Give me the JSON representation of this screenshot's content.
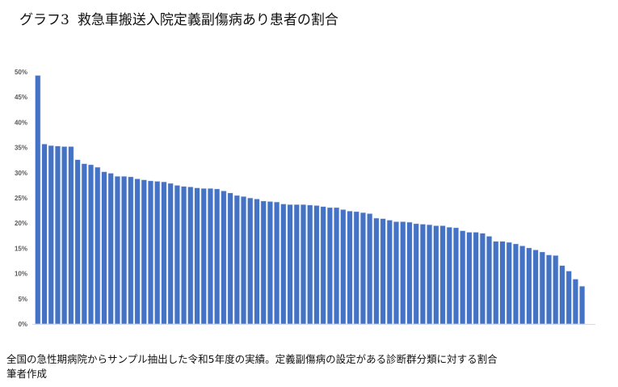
{
  "chart_data": {
    "type": "bar",
    "title_prefix": "グラフ3",
    "title": "救急車搬送入院定義副傷病あり患者の割合",
    "xlabel": "",
    "ylabel": "",
    "ylim": [
      0,
      50
    ],
    "yticks": [
      "0%",
      "5%",
      "10%",
      "15%",
      "20%",
      "25%",
      "30%",
      "35%",
      "40%",
      "45%",
      "50%"
    ],
    "grid": false,
    "color": "#4472C4",
    "values": [
      49.3,
      35.7,
      35.4,
      35.3,
      35.2,
      35.2,
      32.6,
      31.8,
      31.6,
      31.1,
      30.2,
      29.9,
      29.3,
      29.3,
      29.2,
      28.8,
      28.6,
      28.4,
      28.3,
      28.2,
      27.9,
      27.5,
      27.3,
      27.2,
      27.0,
      26.9,
      26.9,
      26.8,
      26.4,
      26.0,
      25.5,
      25.3,
      25.0,
      24.8,
      24.4,
      24.3,
      24.2,
      23.8,
      23.7,
      23.7,
      23.7,
      23.6,
      23.5,
      23.3,
      23.1,
      23.1,
      22.7,
      22.4,
      22.3,
      22.1,
      21.9,
      21.0,
      20.9,
      20.6,
      20.3,
      20.3,
      20.2,
      19.9,
      19.8,
      19.7,
      19.5,
      19.5,
      19.2,
      19.1,
      18.5,
      18.2,
      18.2,
      18.0,
      17.4,
      16.4,
      16.4,
      16.2,
      15.9,
      15.5,
      15.1,
      14.7,
      14.3,
      13.7,
      13.6,
      11.6,
      10.5,
      8.9,
      7.5
    ]
  },
  "caption": {
    "line1": "全国の急性期病院からサンプル抽出した令和5年度の実績。定義副傷病の設定がある診断群分類に対する割合",
    "line2": "筆者作成"
  }
}
